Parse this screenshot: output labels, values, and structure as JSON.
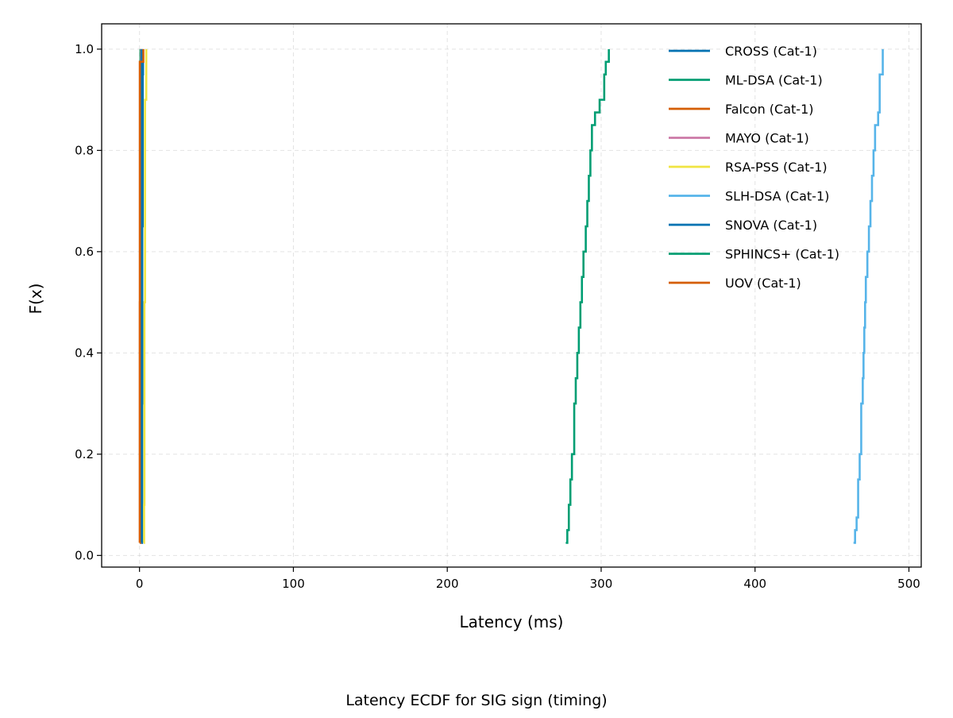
{
  "chart_data": {
    "type": "line",
    "subtype": "ecdf-step",
    "title": "",
    "caption": "Latency ECDF for SIG sign (timing)",
    "xlabel": "Latency (ms)",
    "ylabel": "F(x)",
    "xlim": [
      -24.6,
      508
    ],
    "ylim": [
      -0.023,
      1.05
    ],
    "xticks": [
      0,
      100,
      200,
      300,
      400,
      500
    ],
    "xtick_labels": [
      "0",
      "100",
      "200",
      "300",
      "400",
      "500"
    ],
    "yticks": [
      0.0,
      0.2,
      0.4,
      0.6,
      0.8,
      1.0
    ],
    "ytick_labels": [
      "0.0",
      "0.2",
      "0.4",
      "0.6",
      "0.8",
      "1.0"
    ],
    "grid": true,
    "legend_position": "upper-right",
    "series": [
      {
        "name": "CROSS (Cat-1)",
        "color": "#0072B2",
        "points": [
          [
            1.6,
            0.025
          ],
          [
            1.7,
            0.3
          ],
          [
            1.8,
            0.65
          ],
          [
            2.1,
            0.95
          ],
          [
            2.3,
            1.0
          ]
        ]
      },
      {
        "name": "ML-DSA (Cat-1)",
        "color": "#009E73",
        "points": [
          [
            0.5,
            0.025
          ],
          [
            0.55,
            0.5
          ],
          [
            0.6,
            1.0
          ]
        ]
      },
      {
        "name": "Falcon (Cat-1)",
        "color": "#D55E00",
        "points": [
          [
            0.9,
            0.025
          ],
          [
            1.0,
            0.5
          ],
          [
            1.1,
            1.0
          ]
        ]
      },
      {
        "name": "MAYO (Cat-1)",
        "color": "#CC79A7",
        "points": [
          [
            1.0,
            0.025
          ],
          [
            1.1,
            0.5
          ],
          [
            1.2,
            1.0
          ]
        ]
      },
      {
        "name": "RSA-PSS (Cat-1)",
        "color": "#F0E442",
        "points": [
          [
            2.8,
            0.025
          ],
          [
            3.0,
            0.1
          ],
          [
            3.2,
            0.5
          ],
          [
            3.6,
            0.9
          ],
          [
            4.4,
            1.0
          ]
        ]
      },
      {
        "name": "SLH-DSA (Cat-1)",
        "color": "#56B4E9",
        "points": [
          [
            464.0,
            0.025
          ],
          [
            465.0,
            0.05
          ],
          [
            466.0,
            0.075
          ],
          [
            467.0,
            0.15
          ],
          [
            468.0,
            0.2
          ],
          [
            469.0,
            0.3
          ],
          [
            470.0,
            0.35
          ],
          [
            470.5,
            0.4
          ],
          [
            471.0,
            0.45
          ],
          [
            471.5,
            0.5
          ],
          [
            472.0,
            0.55
          ],
          [
            473.0,
            0.6
          ],
          [
            474.0,
            0.65
          ],
          [
            475.0,
            0.7
          ],
          [
            476.0,
            0.75
          ],
          [
            477.0,
            0.8
          ],
          [
            478.0,
            0.85
          ],
          [
            480.0,
            0.875
          ],
          [
            481.0,
            0.95
          ],
          [
            483.0,
            1.0
          ]
        ]
      },
      {
        "name": "SNOVA (Cat-1)",
        "color": "#0072B2",
        "points": [
          [
            1.3,
            0.025
          ],
          [
            1.4,
            0.5
          ],
          [
            1.5,
            1.0
          ]
        ]
      },
      {
        "name": "SPHINCS+ (Cat-1)",
        "color": "#009E73",
        "points": [
          [
            277.0,
            0.025
          ],
          [
            278.0,
            0.05
          ],
          [
            279.0,
            0.1
          ],
          [
            280.0,
            0.15
          ],
          [
            281.0,
            0.2
          ],
          [
            282.5,
            0.3
          ],
          [
            283.5,
            0.35
          ],
          [
            284.5,
            0.4
          ],
          [
            285.5,
            0.45
          ],
          [
            286.5,
            0.5
          ],
          [
            287.5,
            0.55
          ],
          [
            288.5,
            0.6
          ],
          [
            290.0,
            0.65
          ],
          [
            291.0,
            0.7
          ],
          [
            292.0,
            0.75
          ],
          [
            293.0,
            0.8
          ],
          [
            294.0,
            0.85
          ],
          [
            296.0,
            0.875
          ],
          [
            299.0,
            0.9
          ],
          [
            302.0,
            0.95
          ],
          [
            303.0,
            0.975
          ],
          [
            305.0,
            1.0
          ]
        ]
      },
      {
        "name": "UOV (Cat-1)",
        "color": "#D55E00",
        "points": [
          [
            0.1,
            0.025
          ],
          [
            0.15,
            0.5
          ],
          [
            0.2,
            0.975
          ],
          [
            2.5,
            1.0
          ]
        ]
      }
    ]
  }
}
